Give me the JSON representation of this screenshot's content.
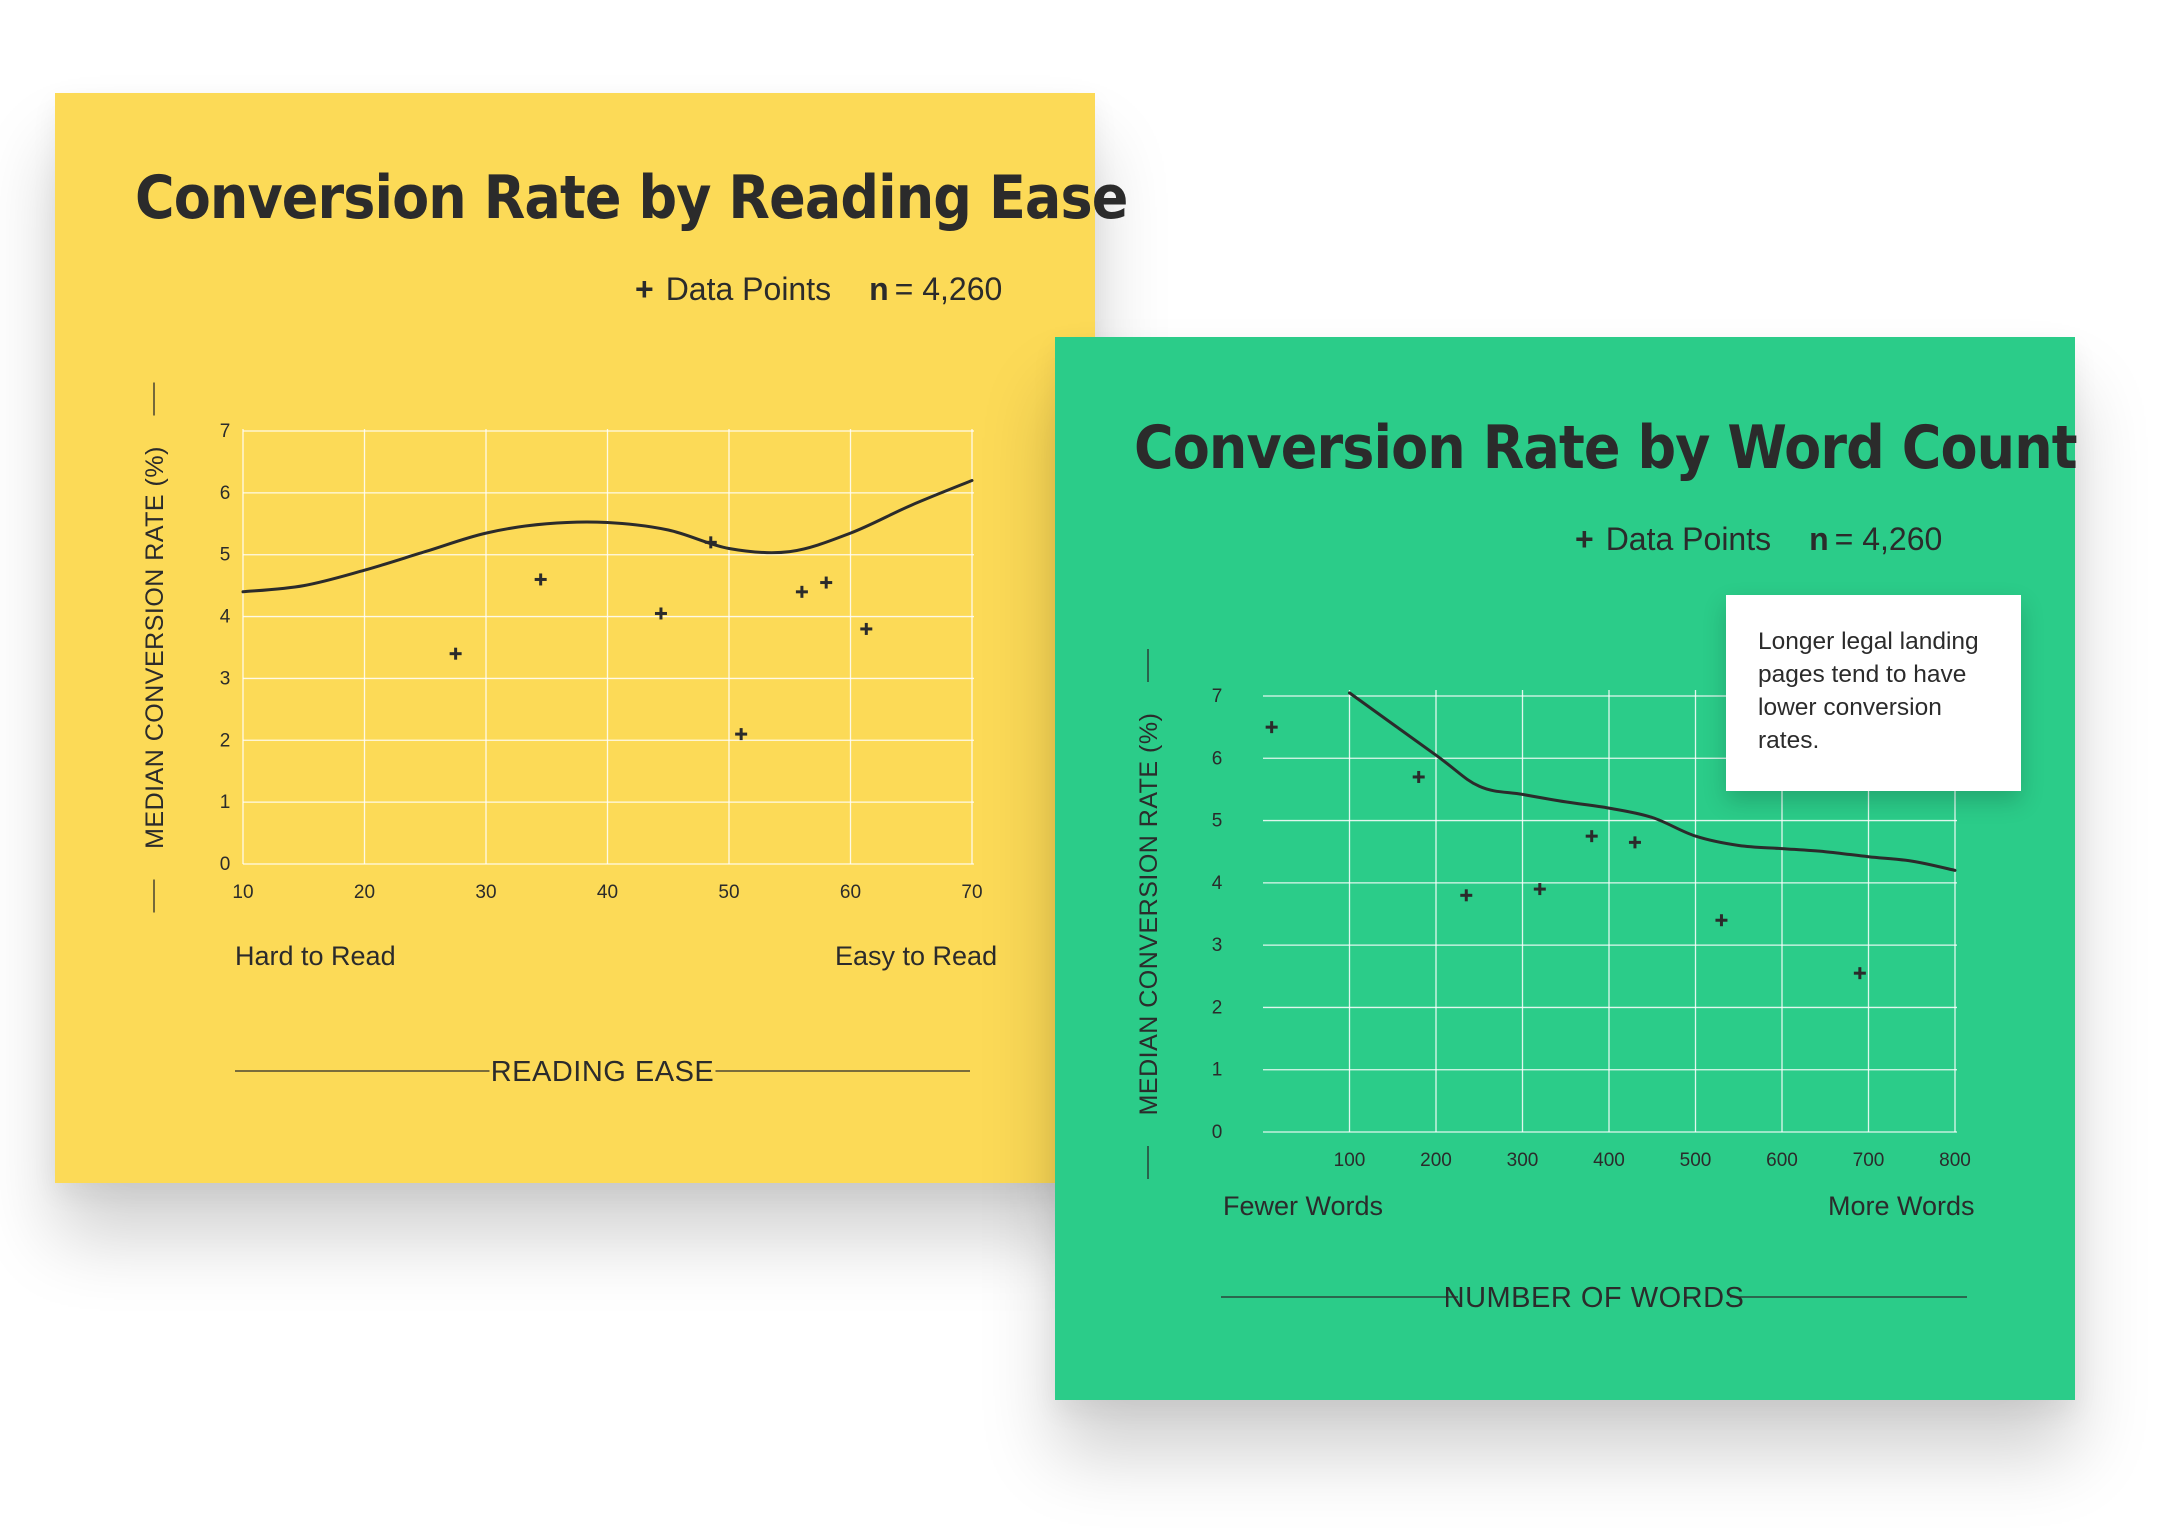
{
  "charts": [
    {
      "id": "reading",
      "title": "Conversion Rate by Reading Ease",
      "legend": {
        "marker": "+",
        "label": "Data Points",
        "n_label": "n",
        "n_value": "= 4,260"
      },
      "axis_end_left": "Hard to Read",
      "axis_end_right": "Easy to Read",
      "note": ""
    },
    {
      "id": "words",
      "title": "Conversion Rate by Word Count",
      "legend": {
        "marker": "+",
        "label": "Data Points",
        "n_label": "n",
        "n_value": "= 4,260"
      },
      "axis_end_left": "Fewer Words",
      "axis_end_right": "More  Words",
      "note": "Longer legal landing pages tend to have lower conversion rates."
    }
  ],
  "colors": {
    "yellow_card": "#fcda57",
    "green_card": "#2bcc89",
    "ink": "#2b2b2b",
    "grid": "#ffffff"
  },
  "chart_data": [
    {
      "type": "scatter",
      "title": "Conversion Rate by Reading Ease",
      "xlabel": "READING EASE",
      "ylabel": "MEDIAN CONVERSION RATE (%)",
      "xlim": [
        10,
        70
      ],
      "ylim": [
        0,
        7
      ],
      "xticks": [
        "10",
        "20",
        "30",
        "40",
        "50",
        "60",
        "70"
      ],
      "yticks": [
        "0",
        "1",
        "2",
        "3",
        "4",
        "5",
        "6",
        "7"
      ],
      "grid": true,
      "series": [
        {
          "name": "Data Points",
          "kind": "scatter",
          "x": [
            27.5,
            34.5,
            44.4,
            48.5,
            51,
            56,
            58,
            61.3
          ],
          "y": [
            3.4,
            4.6,
            4.05,
            5.2,
            2.1,
            4.4,
            4.55,
            3.8
          ]
        },
        {
          "kind": "trend",
          "x": [
            10,
            15,
            20,
            25,
            30,
            35,
            40,
            45,
            50,
            55,
            60,
            65,
            70
          ],
          "y": [
            4.4,
            4.5,
            4.75,
            5.05,
            5.35,
            5.5,
            5.52,
            5.4,
            5.1,
            5.05,
            5.35,
            5.8,
            6.2
          ]
        }
      ]
    },
    {
      "type": "scatter",
      "title": "Conversion Rate by Word Count",
      "xlabel": "NUMBER OF WORDS",
      "ylabel": "MEDIAN CONVERSION RATE (%)",
      "xlim": [
        0,
        800
      ],
      "ylim": [
        0,
        7
      ],
      "xticks": [
        "100",
        "200",
        "300",
        "400",
        "500",
        "600",
        "700",
        "800"
      ],
      "yticks": [
        "0",
        "1",
        "2",
        "3",
        "4",
        "5",
        "6",
        "7"
      ],
      "grid": true,
      "series": [
        {
          "name": "Data Points",
          "kind": "scatter",
          "x": [
            10,
            180,
            235,
            320,
            380,
            430,
            530,
            690
          ],
          "y": [
            6.5,
            5.7,
            3.8,
            3.9,
            4.75,
            4.65,
            3.4,
            2.55
          ]
        },
        {
          "kind": "trend",
          "x": [
            100,
            200,
            250,
            300,
            350,
            400,
            450,
            500,
            550,
            600,
            650,
            700,
            750,
            800
          ],
          "y": [
            7.05,
            6.05,
            5.55,
            5.42,
            5.3,
            5.2,
            5.05,
            4.75,
            4.6,
            4.55,
            4.5,
            4.42,
            4.35,
            4.2
          ]
        }
      ]
    }
  ]
}
